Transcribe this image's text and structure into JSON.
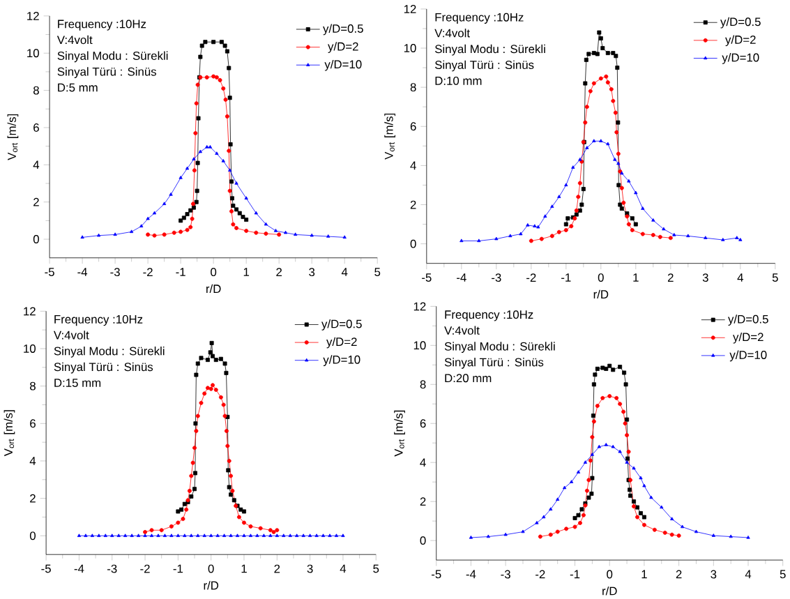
{
  "chart_data": [
    {
      "type": "line",
      "xlabel": "r/D",
      "ylabel": "V$_{ort}$ [m/s]",
      "annotations": [
        "Frequency :10Hz",
        "V:4volt",
        "Sinyal Modu : Sürekli",
        "Sinyal Türü : Sinüs",
        "D:5 mm"
      ],
      "xlim": [
        -5,
        5
      ],
      "ylim": [
        -1,
        12
      ],
      "xticks": [
        -5,
        -4,
        -3,
        -2,
        -1,
        0,
        1,
        2,
        3,
        4,
        5
      ],
      "yticks": [
        0,
        2,
        4,
        6,
        8,
        10,
        12
      ],
      "legend": "top right",
      "series": [
        {
          "name": "y/D=0.5",
          "color": "#000000",
          "marker": "square",
          "x": [
            -1,
            -0.9,
            -0.8,
            -0.7,
            -0.6,
            -0.52,
            -0.5,
            -0.48,
            -0.46,
            -0.43,
            -0.4,
            -0.35,
            -0.25,
            0,
            0.25,
            0.35,
            0.42,
            0.47,
            0.5,
            0.52,
            0.55,
            0.57,
            0.6,
            0.7,
            0.8,
            0.9,
            1.0
          ],
          "values": [
            1.0,
            1.15,
            1.35,
            1.55,
            1.7,
            2.0,
            2.6,
            4.1,
            6.5,
            8.7,
            9.8,
            10.4,
            10.6,
            10.6,
            10.6,
            10.4,
            10.1,
            9.2,
            7.6,
            5.1,
            3.1,
            2.2,
            1.8,
            1.6,
            1.4,
            1.2,
            1.05
          ]
        },
        {
          "name": "y/D=2",
          "color": "#ff0000",
          "marker": "circle",
          "x": [
            -2,
            -1.8,
            -1.5,
            -1.2,
            -1,
            -0.8,
            -0.7,
            -0.65,
            -0.62,
            -0.58,
            -0.55,
            -0.52,
            -0.48,
            -0.4,
            -0.2,
            0,
            0.1,
            0.2,
            0.3,
            0.37,
            0.42,
            0.47,
            0.5,
            0.55,
            0.6,
            0.7,
            1,
            1.3,
            1.6,
            2
          ],
          "values": [
            0.25,
            0.2,
            0.25,
            0.35,
            0.4,
            0.5,
            0.65,
            1.1,
            1.9,
            3.7,
            5.7,
            7.3,
            8.3,
            8.7,
            8.7,
            8.75,
            8.7,
            8.55,
            8.1,
            7.5,
            6.6,
            4.75,
            2.6,
            1.5,
            0.8,
            0.6,
            0.45,
            0.35,
            0.3,
            0.25
          ]
        },
        {
          "name": "y/D=10",
          "color": "#0000ff",
          "marker": "triangle",
          "x": [
            -4,
            -3.5,
            -3,
            -2.5,
            -2.2,
            -2,
            -1.8,
            -1.5,
            -1.3,
            -1,
            -0.8,
            -0.6,
            -0.4,
            -0.2,
            -0.1,
            0.1,
            0.3,
            0.5,
            0.7,
            1,
            1.3,
            1.6,
            1.9,
            2.2,
            2.5,
            3,
            3.5,
            4
          ],
          "values": [
            0.1,
            0.2,
            0.25,
            0.4,
            0.7,
            1.1,
            1.4,
            1.9,
            2.4,
            3.3,
            3.8,
            4.3,
            4.7,
            4.95,
            4.95,
            4.6,
            4.2,
            3.7,
            3.0,
            2.2,
            1.4,
            0.8,
            0.45,
            0.35,
            0.25,
            0.2,
            0.15,
            0.1
          ]
        }
      ]
    },
    {
      "type": "line",
      "xlabel": "r/D",
      "ylabel": "V$_{ort}$ [m/s]",
      "annotations": [
        "Frequency :10Hz",
        "V:4volt",
        "Sinyal Modu : Sürekli",
        "Sinyal Türü : Sinüs",
        "D:10 mm"
      ],
      "xlim": [
        -5,
        5
      ],
      "ylim": [
        -1,
        12
      ],
      "xticks": [
        -5,
        -4,
        -3,
        -2,
        -1,
        0,
        1,
        2,
        3,
        4,
        5
      ],
      "yticks": [
        0,
        2,
        4,
        6,
        8,
        10,
        12
      ],
      "legend": "top right",
      "series": [
        {
          "name": "y/D=0.5",
          "color": "#000000",
          "marker": "square",
          "x": [
            -1,
            -0.95,
            -0.8,
            -0.7,
            -0.6,
            -0.55,
            -0.5,
            -0.48,
            -0.45,
            -0.42,
            -0.35,
            -0.2,
            -0.1,
            -0.05,
            0,
            0.05,
            0.2,
            0.35,
            0.43,
            0.47,
            0.49,
            0.51,
            0.55,
            0.6,
            0.75,
            0.9,
            1
          ],
          "values": [
            1.0,
            1.3,
            1.35,
            1.5,
            1.7,
            2.0,
            2.8,
            5.2,
            8.2,
            9.4,
            9.7,
            9.75,
            9.7,
            10.8,
            10.5,
            10.0,
            9.75,
            9.75,
            9.6,
            9.0,
            6.2,
            3.0,
            2.0,
            1.8,
            1.55,
            1.3,
            1.0
          ]
        },
        {
          "name": "y/D=2",
          "color": "#ff0000",
          "marker": "circle",
          "x": [
            -2,
            -1.7,
            -1.4,
            -1.2,
            -1,
            -0.85,
            -0.75,
            -0.7,
            -0.65,
            -0.6,
            -0.55,
            -0.5,
            -0.45,
            -0.4,
            -0.3,
            -0.2,
            0,
            0.15,
            0.2,
            0.3,
            0.35,
            0.42,
            0.45,
            0.5,
            0.55,
            0.6,
            0.65,
            0.75,
            0.8,
            0.9,
            1.2,
            1.5,
            1.7,
            2
          ],
          "values": [
            0.15,
            0.25,
            0.4,
            0.6,
            0.7,
            0.9,
            1.3,
            1.7,
            2.4,
            3.1,
            4.2,
            5.2,
            6.2,
            7.0,
            7.8,
            8.2,
            8.45,
            8.55,
            8.25,
            7.9,
            7.3,
            6.7,
            5.7,
            4.6,
            3.7,
            2.85,
            2.1,
            1.4,
            1.0,
            0.7,
            0.5,
            0.45,
            0.35,
            0.3
          ]
        },
        {
          "name": "y/D=10",
          "color": "#0000ff",
          "marker": "triangle",
          "x": [
            -4,
            -3.5,
            -3,
            -2.6,
            -2.3,
            -2.1,
            -1.9,
            -1.8,
            -1.6,
            -1.4,
            -1.2,
            -1,
            -0.8,
            -0.6,
            -0.4,
            -0.2,
            0,
            0.2,
            0.4,
            0.5,
            0.6,
            0.8,
            1,
            1.2,
            1.5,
            1.8,
            2.1,
            2.5,
            3,
            3.5,
            3.9,
            4
          ],
          "values": [
            0.15,
            0.15,
            0.25,
            0.4,
            0.5,
            0.95,
            0.9,
            0.85,
            1.4,
            1.9,
            2.4,
            3.0,
            3.9,
            4.3,
            4.9,
            5.25,
            5.25,
            5.1,
            4.3,
            4.1,
            3.6,
            3.2,
            2.6,
            1.8,
            1.2,
            0.75,
            0.45,
            0.4,
            0.3,
            0.2,
            0.3,
            0.2
          ]
        }
      ]
    },
    {
      "type": "line",
      "xlabel": "r/D",
      "ylabel": "V$_{ort}$ [m/s]",
      "annotations": [
        "Frequency :10Hz",
        "V:4volt",
        "Sinyal Modu : Sürekli",
        "Sinyal Türü : Sinüs",
        "D:15 mm"
      ],
      "xlim": [
        -5,
        5
      ],
      "ylim": [
        -1,
        12
      ],
      "xticks": [
        -5,
        -4,
        -3,
        -2,
        -1,
        0,
        1,
        2,
        3,
        4,
        5
      ],
      "yticks": [
        0,
        2,
        4,
        6,
        8,
        10,
        12
      ],
      "legend": "top right",
      "series": [
        {
          "name": "y/D=0.5",
          "color": "#000000",
          "marker": "square",
          "x": [
            -1,
            -0.9,
            -0.8,
            -0.7,
            -0.6,
            -0.5,
            -0.48,
            -0.47,
            -0.45,
            -0.4,
            -0.3,
            -0.1,
            -0.02,
            0.02,
            0.05,
            0.15,
            0.3,
            0.42,
            0.46,
            0.5,
            0.52,
            0.55,
            0.6,
            0.7,
            0.8,
            0.9,
            1.0
          ],
          "values": [
            1.3,
            1.4,
            1.7,
            1.8,
            2.1,
            2.5,
            3.35,
            6.0,
            8.6,
            9.2,
            9.5,
            9.4,
            9.8,
            10.3,
            9.6,
            9.4,
            9.45,
            9.2,
            8.7,
            6.35,
            3.5,
            2.6,
            2.2,
            1.9,
            1.6,
            1.4,
            1.3
          ]
        },
        {
          "name": "y/D=2",
          "color": "#ff0000",
          "marker": "circle",
          "x": [
            -2,
            -1.8,
            -1.5,
            -1.2,
            -1,
            -0.85,
            -0.75,
            -0.7,
            -0.65,
            -0.6,
            -0.55,
            -0.5,
            -0.45,
            -0.4,
            -0.3,
            -0.2,
            -0.1,
            0,
            0.05,
            0.15,
            0.3,
            0.38,
            0.42,
            0.47,
            0.5,
            0.55,
            0.6,
            0.65,
            0.75,
            0.85,
            1,
            1.2,
            1.5,
            1.8,
            1.9,
            2
          ],
          "values": [
            0.2,
            0.3,
            0.3,
            0.5,
            0.7,
            0.9,
            1.4,
            1.9,
            2.4,
            3.2,
            3.9,
            4.7,
            5.6,
            6.4,
            7.1,
            7.6,
            7.9,
            7.85,
            8.05,
            7.8,
            7.4,
            7.0,
            6.4,
            5.6,
            4.8,
            4.0,
            3.2,
            2.4,
            1.6,
            1.0,
            0.7,
            0.5,
            0.4,
            0.3,
            0.2,
            0.3
          ]
        },
        {
          "name": "y/D=10",
          "color": "#0000ff",
          "marker": "triangle",
          "x": [
            -4,
            -3.8,
            -3.6,
            -3.4,
            -3.2,
            -3,
            -2.8,
            -2.6,
            -2.4,
            -2.2,
            -2,
            -1.8,
            -1.6,
            -1.4,
            -1.2,
            -1,
            -0.8,
            -0.6,
            -0.4,
            -0.2,
            0,
            0.2,
            0.4,
            0.6,
            0.8,
            1,
            1.2,
            1.4,
            1.6,
            1.8,
            2,
            2.2,
            2.4,
            2.6,
            2.8,
            3,
            3.2,
            3.4,
            3.6,
            3.8,
            4
          ],
          "values": [
            0,
            0,
            0,
            0,
            0,
            0,
            0,
            0,
            0,
            0,
            0,
            0,
            0,
            0,
            0,
            0,
            0,
            0,
            0,
            0,
            0,
            0,
            0,
            0,
            0,
            0,
            0,
            0,
            0,
            0,
            0,
            0,
            0,
            0,
            0,
            0,
            0,
            0,
            0,
            0,
            0
          ]
        }
      ]
    },
    {
      "type": "line",
      "xlabel": "r/D",
      "ylabel": "V$_{ort}$ [m/s]",
      "annotations": [
        "Frequency :10Hz",
        "V:4volt",
        "Sinyal Modu : Sürekli",
        "Sinyal Türü : Sinüs",
        "D:20 mm"
      ],
      "xlim": [
        -5,
        5
      ],
      "ylim": [
        -1,
        12
      ],
      "xticks": [
        -5,
        -4,
        -3,
        -2,
        -1,
        0,
        1,
        2,
        3,
        4,
        5
      ],
      "yticks": [
        0,
        2,
        4,
        6,
        8,
        10,
        12
      ],
      "legend": "top right",
      "series": [
        {
          "name": "y/D=0.5",
          "color": "#000000",
          "marker": "square",
          "x": [
            -1,
            -0.9,
            -0.8,
            -0.7,
            -0.6,
            -0.52,
            -0.5,
            -0.47,
            -0.45,
            -0.42,
            -0.35,
            -0.2,
            -0.1,
            0,
            0.1,
            0.3,
            0.42,
            0.47,
            0.5,
            0.52,
            0.55,
            0.58,
            0.6,
            0.7,
            0.8,
            0.9,
            1
          ],
          "values": [
            1.15,
            1.3,
            1.6,
            1.9,
            2.2,
            2.4,
            3.2,
            6.4,
            8.0,
            8.5,
            8.8,
            8.85,
            8.8,
            8.95,
            8.75,
            8.9,
            8.6,
            8.0,
            6.2,
            4.2,
            3.1,
            2.6,
            2.3,
            2.0,
            1.7,
            1.4,
            1.2
          ]
        },
        {
          "name": "y/D=2",
          "color": "#ff0000",
          "marker": "circle",
          "x": [
            -2,
            -1.7,
            -1.5,
            -1.25,
            -1,
            -0.85,
            -0.75,
            -0.7,
            -0.65,
            -0.6,
            -0.55,
            -0.5,
            -0.45,
            -0.35,
            -0.2,
            0,
            0.2,
            0.3,
            0.4,
            0.45,
            0.5,
            0.55,
            0.6,
            0.7,
            0.8,
            1,
            1.3,
            1.6,
            1.8,
            2
          ],
          "values": [
            0.2,
            0.3,
            0.45,
            0.6,
            0.7,
            0.9,
            1.3,
            1.8,
            2.55,
            3.1,
            4.1,
            5.3,
            6.1,
            6.9,
            7.3,
            7.4,
            7.3,
            7.0,
            6.6,
            6.0,
            5.4,
            4.55,
            3.1,
            1.75,
            1.2,
            0.8,
            0.55,
            0.4,
            0.3,
            0.25
          ]
        },
        {
          "name": "y/D=10",
          "color": "#0000ff",
          "marker": "triangle",
          "x": [
            -4,
            -3.5,
            -3,
            -2.5,
            -2.1,
            -1.9,
            -1.7,
            -1.5,
            -1.3,
            -1.1,
            -0.9,
            -0.7,
            -0.5,
            -0.3,
            -0.1,
            0.1,
            0.3,
            0.5,
            0.7,
            0.9,
            1,
            1.2,
            1.5,
            1.8,
            2.1,
            2.5,
            3,
            3.5,
            4
          ],
          "values": [
            0.15,
            0.2,
            0.3,
            0.45,
            0.9,
            1.2,
            1.6,
            2.1,
            2.7,
            3.0,
            3.5,
            4.0,
            4.4,
            4.8,
            4.9,
            4.8,
            4.55,
            4.0,
            3.7,
            3.2,
            2.8,
            2.2,
            1.7,
            1.1,
            0.7,
            0.45,
            0.25,
            0.2,
            0.15
          ]
        }
      ]
    }
  ]
}
